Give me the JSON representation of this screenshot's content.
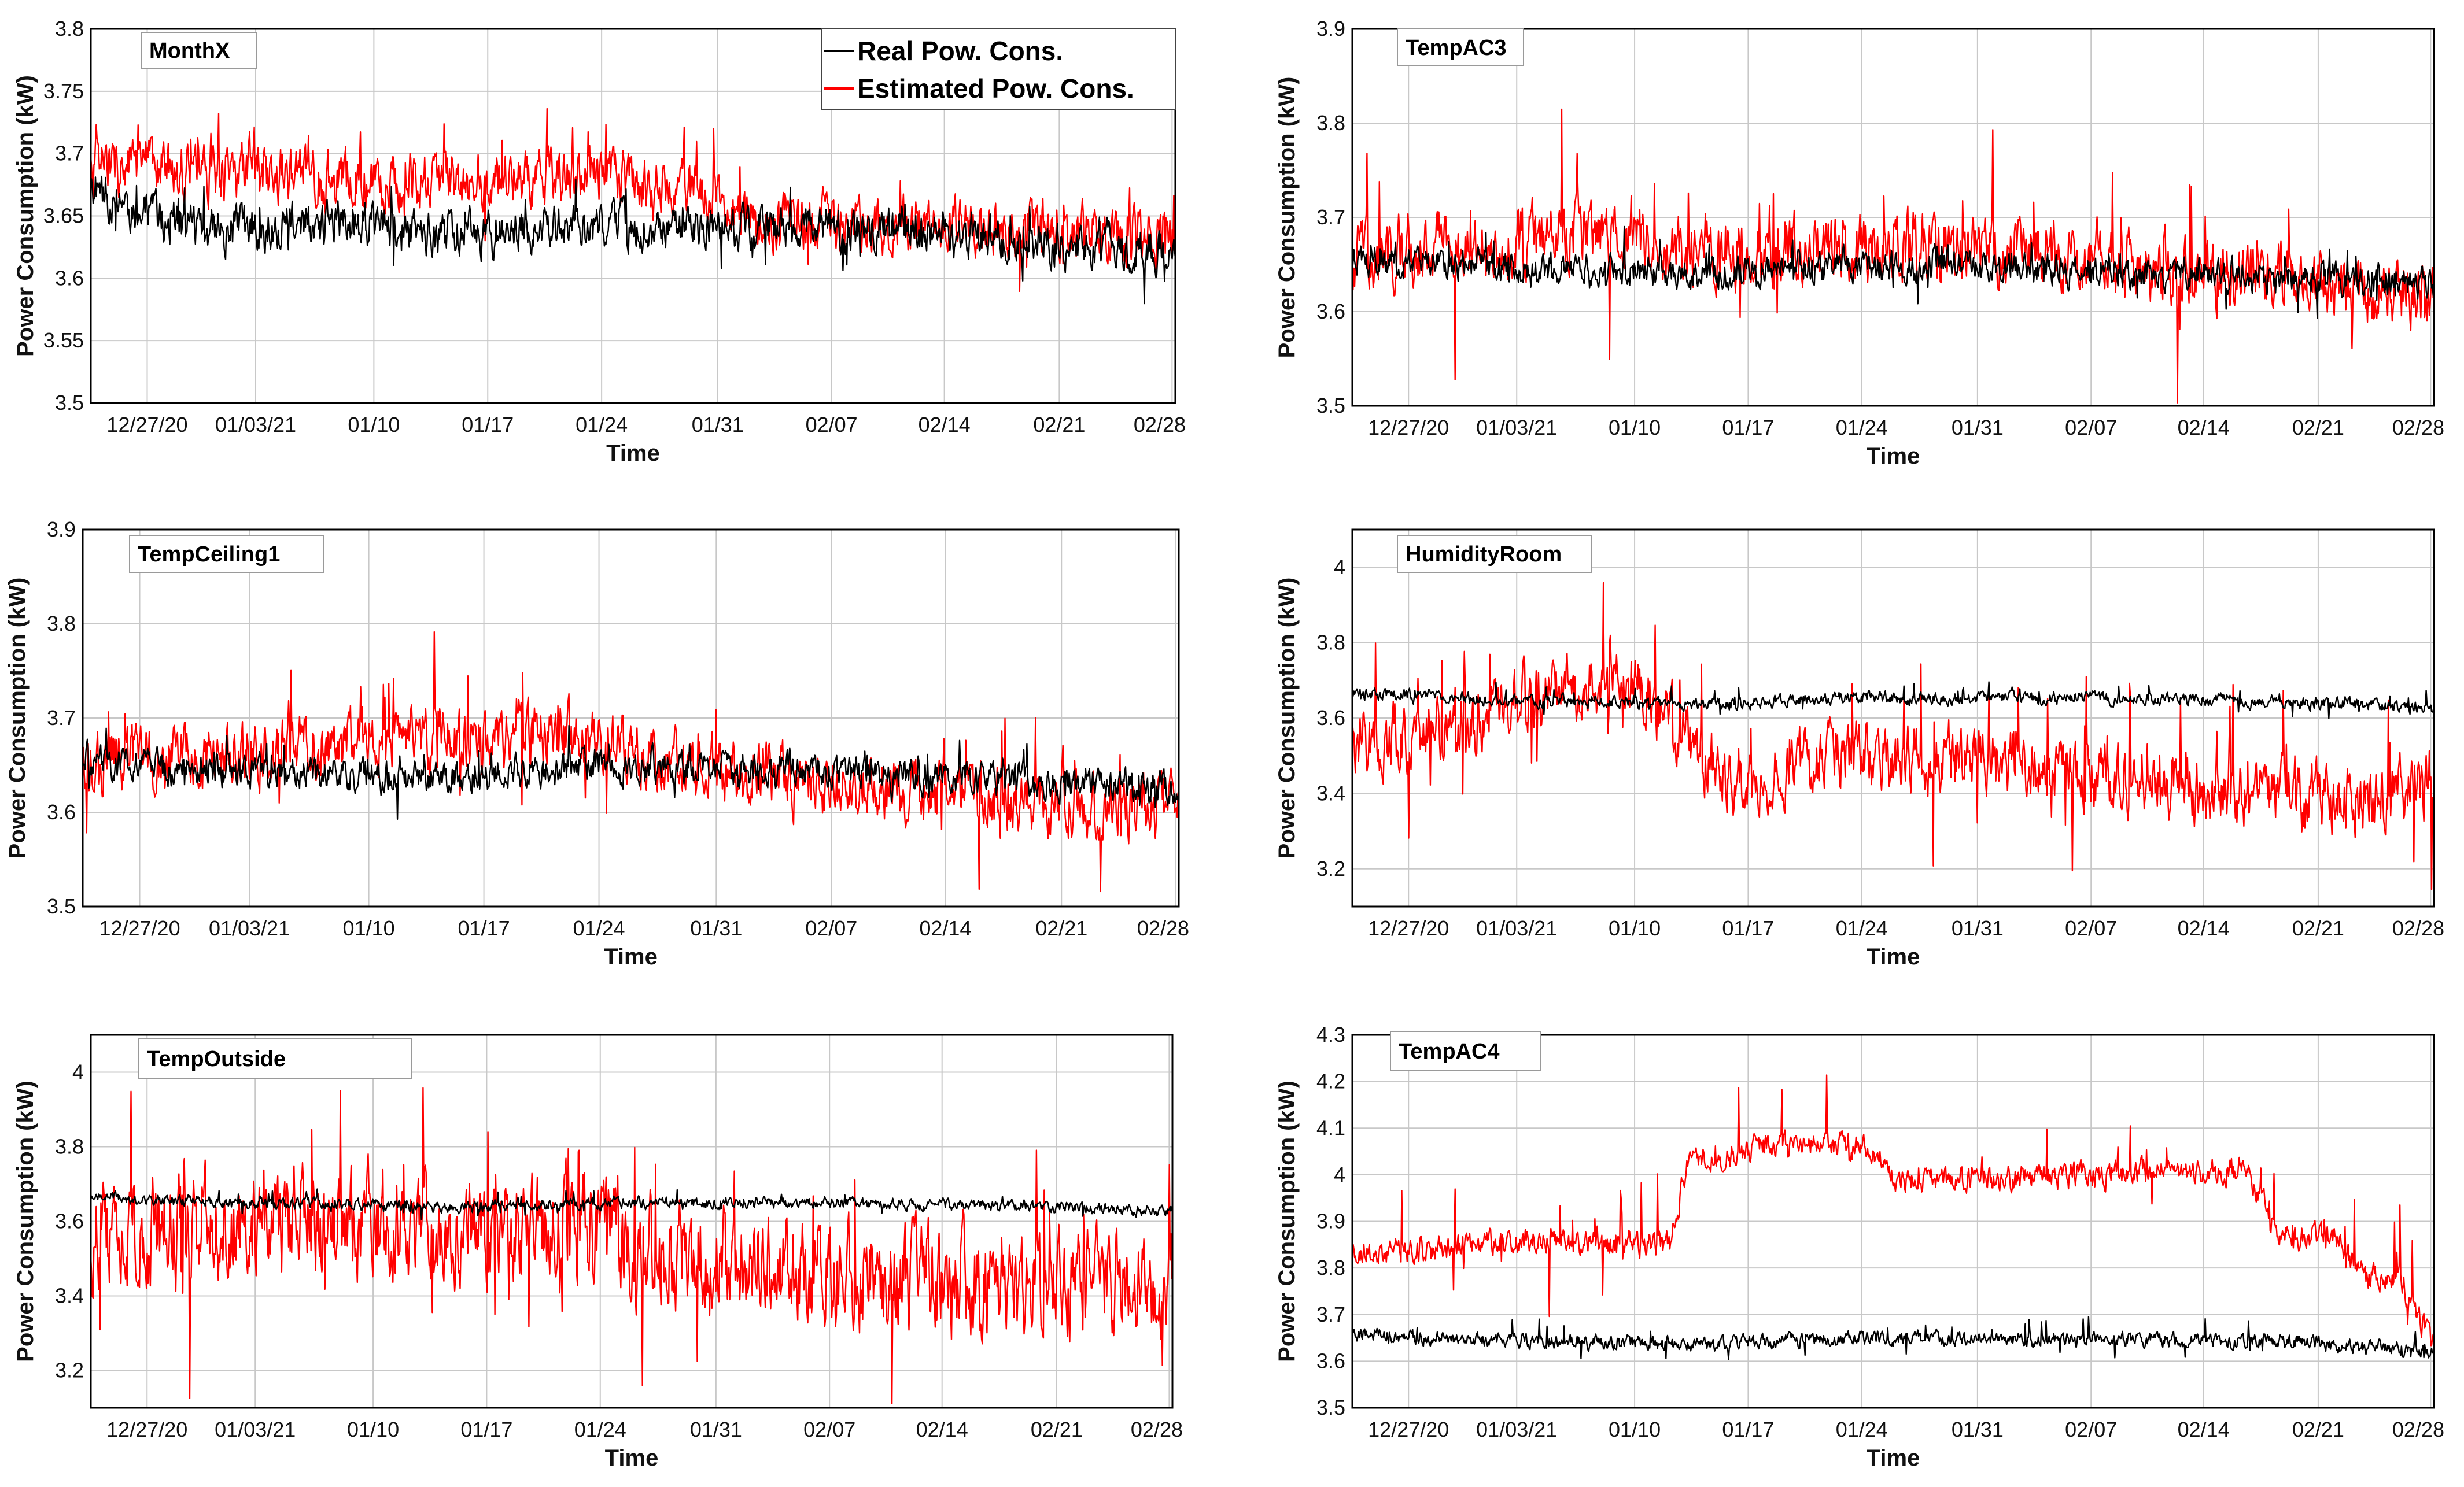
{
  "figure": {
    "series_names": [
      "Real Pow. Cons.",
      "Estimated Pow. Cons."
    ],
    "series_colors": {
      "real": "#000000",
      "estimated": "#ff0000"
    }
  },
  "chart_data": [
    {
      "type": "line",
      "title": "MonthX",
      "xlabel": "Time",
      "ylabel": "Power Consumption (kW)",
      "xticks": [
        "12/27/20",
        "01/03/21",
        "01/10",
        "01/17",
        "01/24",
        "01/31",
        "02/07",
        "02/14",
        "02/21",
        "02/28"
      ],
      "ylim": [
        3.5,
        3.8
      ],
      "yticks": [
        "3.5",
        "3.55",
        "3.6",
        "3.65",
        "3.7",
        "3.75",
        "3.8"
      ],
      "yticks_values": [
        3.5,
        3.55,
        3.6,
        3.65,
        3.7,
        3.75,
        3.8
      ],
      "legend": [
        "Real Pow. Cons.",
        "Estimated Pow. Cons."
      ],
      "legend_location": "top-right",
      "grid": true,
      "series": [
        {
          "name": "Real Pow. Cons.",
          "x": [
            0,
            3,
            7,
            14,
            21,
            28,
            35,
            42,
            49,
            56,
            63
          ],
          "values": [
            3.665,
            3.65,
            3.64,
            3.645,
            3.635,
            3.64,
            3.64,
            3.64,
            3.635,
            3.63,
            3.62
          ],
          "noise": 0.014,
          "spike": 0.03
        },
        {
          "name": "Estimated Pow. Cons.",
          "x": [
            0,
            3,
            7,
            14,
            21,
            28,
            35,
            38,
            42,
            49,
            56,
            63
          ],
          "values": [
            3.69,
            3.69,
            3.685,
            3.68,
            3.68,
            3.68,
            3.675,
            3.645,
            3.645,
            3.64,
            3.64,
            3.635
          ],
          "noise": 0.018,
          "spike": 0.04
        }
      ]
    },
    {
      "type": "line",
      "title": "TempAC3",
      "xlabel": "Time",
      "ylabel": "Power Consumption (kW)",
      "xticks": [
        "12/27/20",
        "01/03/21",
        "01/10",
        "01/17",
        "01/24",
        "01/31",
        "02/07",
        "02/14",
        "02/21",
        "02/28"
      ],
      "ylim": [
        3.5,
        3.9
      ],
      "yticks": [
        "3.5",
        "3.6",
        "3.7",
        "3.8",
        "3.9"
      ],
      "yticks_values": [
        3.5,
        3.6,
        3.7,
        3.8,
        3.9
      ],
      "grid": true,
      "series": [
        {
          "name": "Real Pow. Cons.",
          "x": [
            0,
            7,
            14,
            21,
            28,
            35,
            42,
            49,
            56,
            63
          ],
          "values": [
            3.655,
            3.65,
            3.645,
            3.64,
            3.65,
            3.65,
            3.645,
            3.64,
            3.635,
            3.63
          ],
          "noise": 0.013,
          "spike": 0.03
        },
        {
          "name": "Estimated Pow. Cons.",
          "x": [
            0,
            7,
            14,
            21,
            28,
            35,
            42,
            49,
            56,
            63
          ],
          "values": [
            3.66,
            3.67,
            3.68,
            3.66,
            3.67,
            3.665,
            3.66,
            3.64,
            3.63,
            3.62
          ],
          "noise": 0.028,
          "spike": 0.11
        }
      ]
    },
    {
      "type": "line",
      "title": "TempCeiling1",
      "xlabel": "Time",
      "ylabel": "Power Consumption (kW)",
      "xticks": [
        "12/27/20",
        "01/03/21",
        "01/10",
        "01/17",
        "01/24",
        "01/31",
        "02/07",
        "02/14",
        "02/21",
        "02/28"
      ],
      "ylim": [
        3.5,
        3.9
      ],
      "yticks": [
        "3.5",
        "3.6",
        "3.7",
        "3.8",
        "3.9"
      ],
      "yticks_values": [
        3.5,
        3.6,
        3.7,
        3.8,
        3.9
      ],
      "grid": true,
      "series": [
        {
          "name": "Real Pow. Cons.",
          "x": [
            0,
            7,
            14,
            21,
            28,
            35,
            42,
            49,
            56,
            63
          ],
          "values": [
            3.655,
            3.645,
            3.64,
            3.635,
            3.65,
            3.645,
            3.645,
            3.64,
            3.63,
            3.625
          ],
          "noise": 0.014,
          "spike": 0.03
        },
        {
          "name": "Estimated Pow. Cons.",
          "x": [
            0,
            7,
            14,
            21,
            28,
            35,
            42,
            49,
            56,
            63
          ],
          "values": [
            3.655,
            3.66,
            3.675,
            3.68,
            3.68,
            3.65,
            3.63,
            3.62,
            3.61,
            3.605
          ],
          "noise": 0.026,
          "spike": 0.09
        }
      ]
    },
    {
      "type": "line",
      "title": "HumidityRoom",
      "xlabel": "Time",
      "ylabel": "Power Consumption (kW)",
      "xticks": [
        "12/27/20",
        "01/03/21",
        "01/10",
        "01/17",
        "01/24",
        "01/31",
        "02/07",
        "02/14",
        "02/21",
        "02/28"
      ],
      "ylim": [
        3.1,
        4.1
      ],
      "yticks": [
        "3.2",
        "3.4",
        "3.6",
        "3.8",
        "4"
      ],
      "yticks_values": [
        3.2,
        3.4,
        3.6,
        3.8,
        4.0
      ],
      "grid": true,
      "series": [
        {
          "name": "Real Pow. Cons.",
          "x": [
            0,
            7,
            14,
            21,
            28,
            35,
            42,
            49,
            56,
            63
          ],
          "values": [
            3.665,
            3.65,
            3.645,
            3.635,
            3.655,
            3.65,
            3.655,
            3.65,
            3.64,
            3.625
          ],
          "noise": 0.013,
          "spike": 0.04
        },
        {
          "name": "Estimated Pow. Cons.",
          "x": [
            0,
            5,
            10,
            16,
            19,
            23,
            28,
            35,
            42,
            49,
            56,
            63
          ],
          "values": [
            3.54,
            3.56,
            3.64,
            3.72,
            3.56,
            3.42,
            3.5,
            3.5,
            3.45,
            3.42,
            3.38,
            3.41
          ],
          "noise": 0.07,
          "spike": 0.25
        }
      ]
    },
    {
      "type": "line",
      "title": "TempOutside",
      "xlabel": "Time",
      "ylabel": "Power Consumption (kW)",
      "xticks": [
        "12/27/20",
        "01/03/21",
        "01/10",
        "01/17",
        "01/24",
        "01/31",
        "02/07",
        "02/14",
        "02/21",
        "02/28"
      ],
      "ylim": [
        3.1,
        4.1
      ],
      "yticks": [
        "3.2",
        "3.4",
        "3.6",
        "3.8",
        "4"
      ],
      "yticks_values": [
        3.2,
        3.4,
        3.6,
        3.8,
        4.0
      ],
      "grid": true,
      "series": [
        {
          "name": "Real Pow. Cons.",
          "x": [
            0,
            7,
            14,
            21,
            28,
            35,
            42,
            49,
            56,
            63
          ],
          "values": [
            3.665,
            3.65,
            3.645,
            3.64,
            3.65,
            3.65,
            3.65,
            3.645,
            3.64,
            3.625
          ],
          "noise": 0.012,
          "spike": 0.03
        },
        {
          "name": "Estimated Pow. Cons.",
          "x": [
            0,
            7,
            14,
            21,
            28,
            35,
            42,
            49,
            56,
            63
          ],
          "values": [
            3.56,
            3.58,
            3.6,
            3.56,
            3.58,
            3.5,
            3.46,
            3.44,
            3.43,
            3.44
          ],
          "noise": 0.11,
          "spike": 0.35
        }
      ]
    },
    {
      "type": "line",
      "title": "TempAC4",
      "xlabel": "Time",
      "ylabel": "Power Consumption (kW)",
      "xticks": [
        "12/27/20",
        "01/03/21",
        "01/10",
        "01/17",
        "01/24",
        "01/31",
        "02/07",
        "02/14",
        "02/21",
        "02/28"
      ],
      "ylim": [
        3.5,
        4.3
      ],
      "yticks": [
        "3.5",
        "3.6",
        "3.7",
        "3.8",
        "3.9",
        "4",
        "4.1",
        "4.2",
        "4.3"
      ],
      "yticks_values": [
        3.5,
        3.6,
        3.7,
        3.8,
        3.9,
        4.0,
        4.1,
        4.2,
        4.3
      ],
      "grid": true,
      "series": [
        {
          "name": "Real Pow. Cons.",
          "x": [
            0,
            7,
            14,
            21,
            28,
            35,
            42,
            49,
            56,
            63
          ],
          "values": [
            3.66,
            3.645,
            3.64,
            3.635,
            3.65,
            3.65,
            3.645,
            3.645,
            3.64,
            3.62
          ],
          "noise": 0.012,
          "spike": 0.04
        },
        {
          "name": "Estimated Pow. Cons.",
          "x": [
            0,
            5,
            10,
            18.5,
            19.5,
            25,
            30,
            32,
            37,
            44,
            52,
            54,
            57,
            59,
            61,
            63
          ],
          "values": [
            3.83,
            3.84,
            3.86,
            3.85,
            4.02,
            4.07,
            4.06,
            3.98,
            3.99,
            4.0,
            4.01,
            3.87,
            3.87,
            3.78,
            3.78,
            3.62
          ],
          "noise": 0.022,
          "spike": 0.15
        }
      ]
    }
  ]
}
